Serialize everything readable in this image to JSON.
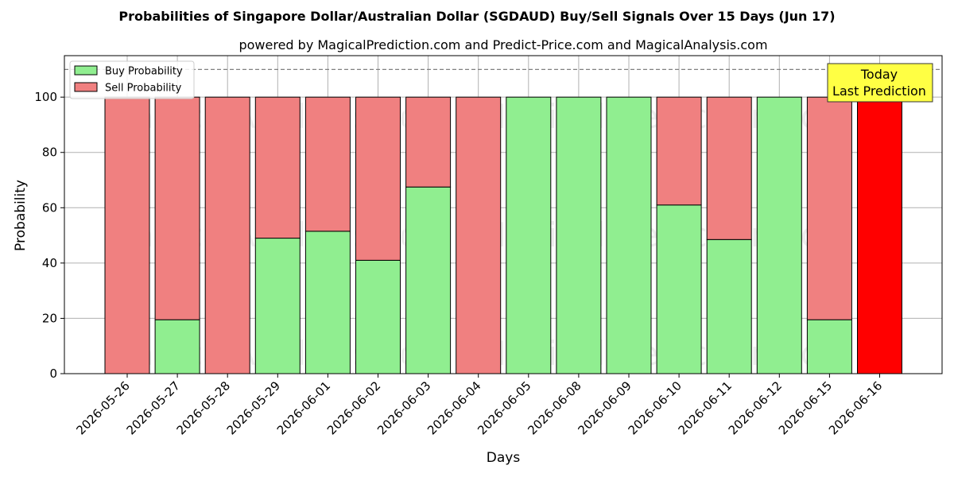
{
  "chart_data": {
    "type": "bar",
    "stacked": true,
    "title": "Probabilities of Singapore Dollar/Australian Dollar (SGDAUD) Buy/Sell Signals Over 15 Days (Jun 17)",
    "subtitle": "powered by MagicalPrediction.com and Predict-Price.com and MagicalAnalysis.com",
    "xlabel": "Days",
    "ylabel": "Probability",
    "ylim": [
      0,
      115
    ],
    "yticks": [
      0,
      20,
      40,
      60,
      80,
      100
    ],
    "grid": true,
    "reference_line": 110,
    "legend_position": "top-left",
    "categories": [
      "2026-05-26",
      "2026-05-27",
      "2026-05-28",
      "2026-05-29",
      "2026-06-01",
      "2026-06-02",
      "2026-06-03",
      "2026-06-04",
      "2026-06-05",
      "2026-06-08",
      "2026-06-09",
      "2026-06-10",
      "2026-06-11",
      "2026-06-12",
      "2026-06-15",
      "2026-06-16"
    ],
    "series": [
      {
        "name": "Buy Probability",
        "color": "#90ee90",
        "values": [
          0,
          19.5,
          0,
          49,
          51.5,
          41,
          67.5,
          0,
          100,
          100,
          100,
          61,
          48.5,
          100,
          19.5,
          0
        ]
      },
      {
        "name": "Sell Probability",
        "color": "#f08080",
        "values": [
          100,
          80.5,
          100,
          51,
          48.5,
          59,
          32.5,
          100,
          0,
          0,
          0,
          39,
          51.5,
          0,
          80.5,
          100
        ]
      }
    ],
    "highlight": {
      "index": 15,
      "color": "#ff0000"
    },
    "annotation": {
      "lines": [
        "Today",
        "Last Prediction"
      ],
      "color": "#ffff44"
    },
    "watermarks": [
      "MagicalAnalysis.com",
      "MagicalPrediction.com"
    ]
  }
}
